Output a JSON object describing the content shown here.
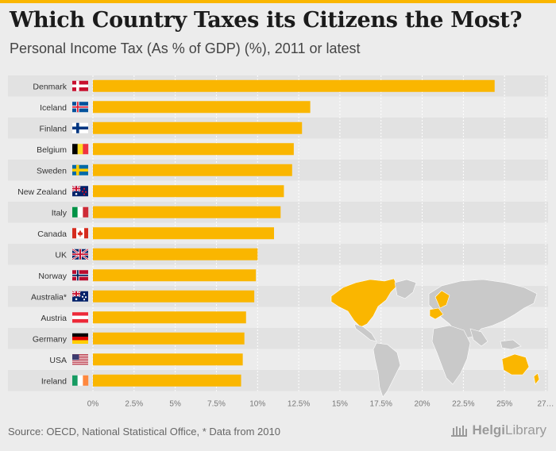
{
  "header": {
    "title": "Which Country Taxes its Citizens the Most?",
    "subtitle": "Personal Income Tax (As % of GDP) (%), 2011 or latest"
  },
  "footer": {
    "source": "Source: OECD, National Statistical Office, * Data from 2010",
    "brand_a": "Helgi",
    "brand_b": "Library"
  },
  "colors": {
    "bar": "#fab600",
    "row_band": "#e2e2e2",
    "map_land": "#c9c9c9",
    "map_highlight": "#fab600"
  },
  "chart_data": {
    "type": "bar",
    "orientation": "horizontal",
    "title": "Which Country Taxes its Citizens the Most?",
    "subtitle": "Personal Income Tax (As % of GDP) (%), 2011 or latest",
    "categories": [
      "Denmark",
      "Iceland",
      "Finland",
      "Belgium",
      "Sweden",
      "New Zealand",
      "Italy",
      "Canada",
      "UK",
      "Norway",
      "Australia*",
      "Austria",
      "Germany",
      "USA",
      "Ireland"
    ],
    "flags": [
      "dk",
      "is",
      "fi",
      "be",
      "se",
      "nz",
      "it",
      "ca",
      "uk",
      "no",
      "au",
      "at",
      "de",
      "us",
      "ie"
    ],
    "values": [
      24.4,
      13.2,
      12.7,
      12.2,
      12.1,
      11.6,
      11.4,
      11.0,
      10.0,
      9.9,
      9.8,
      9.3,
      9.2,
      9.1,
      9.0
    ],
    "xlim": [
      0,
      27.5
    ],
    "ticks": [
      "0%",
      "2.5%",
      "5%",
      "7.5%",
      "10%",
      "12.5%",
      "15%",
      "17.5%",
      "20%",
      "22.5%",
      "25%",
      "27…"
    ],
    "unit": "%",
    "grid": true
  }
}
